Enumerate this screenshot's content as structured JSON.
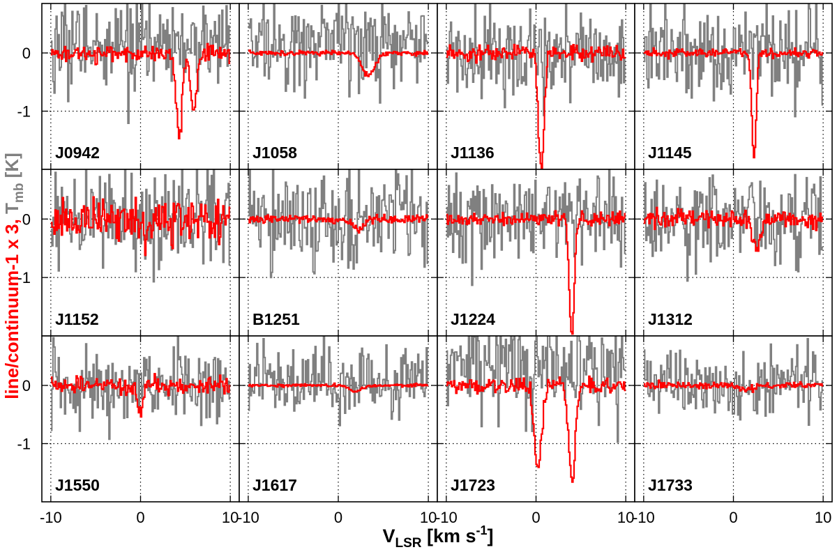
{
  "chart_data": {
    "type": "line",
    "layout": "grid of 12 panels, 3 rows x 4 columns, shared axes",
    "xlabel_main": "V",
    "xlabel_sub": "LSR",
    "xlabel_unit_prefix": " [km s",
    "xlabel_unit_exp": "-1",
    "xlabel_unit_suffix": "]",
    "ylabel_red": "line/continuum-1 x 3, ",
    "ylabel_gray_main": "T",
    "ylabel_gray_sub": "mb",
    "ylabel_gray_suffix": " [K]",
    "xlim": [
      -11,
      11
    ],
    "ylim": [
      -2.0,
      0.85
    ],
    "xticks": [
      -10,
      0,
      10
    ],
    "xtick_labels": [
      "-10",
      "0",
      "10"
    ],
    "yticks": [
      0,
      -1
    ],
    "ytick_labels": [
      "0",
      "-1"
    ],
    "grid": "dotted at x = -10, 0, 10 and y = 0, -1",
    "velocity_range": [
      -10,
      10
    ],
    "colors": {
      "red_series": "#ff0000",
      "gray_series": "#808080",
      "axes": "#000000",
      "grid": "#000000"
    },
    "series": [
      {
        "name": "line/continuum-1 x 3",
        "color": "#ff0000"
      },
      {
        "name": "Tmb [K]",
        "color": "#808080"
      }
    ],
    "panels": [
      {
        "label": "J0942",
        "red_noise": 0.07,
        "gray_noise": 0.38,
        "gray_offset": 0.12,
        "features": [
          {
            "center": 4.3,
            "depth": -1.45,
            "width": 0.33
          },
          {
            "center": 5.9,
            "depth": -1.05,
            "width": 0.33
          }
        ]
      },
      {
        "label": "J1058",
        "red_noise": 0.02,
        "gray_noise": 0.4,
        "gray_offset": 0.2,
        "features": [
          {
            "center": 3.4,
            "depth": -0.38,
            "width": 0.7
          }
        ]
      },
      {
        "label": "J1136",
        "red_noise": 0.07,
        "gray_noise": 0.4,
        "gray_offset": 0.0,
        "features": [
          {
            "center": 0.6,
            "depth": -1.95,
            "width": 0.32
          }
        ]
      },
      {
        "label": "J1145",
        "red_noise": 0.04,
        "gray_noise": 0.4,
        "gray_offset": 0.05,
        "features": [
          {
            "center": 2.3,
            "depth": -1.85,
            "width": 0.24
          }
        ]
      },
      {
        "label": "J1152",
        "red_noise": 0.18,
        "gray_noise": 0.4,
        "gray_offset": 0.0,
        "features": [
          {
            "center": 0.6,
            "depth": -0.3,
            "width": 0.6
          }
        ]
      },
      {
        "label": "B1251",
        "red_noise": 0.04,
        "gray_noise": 0.42,
        "gray_offset": 0.0,
        "features": [
          {
            "center": 2.2,
            "depth": -0.2,
            "width": 0.6
          }
        ]
      },
      {
        "label": "J1224",
        "red_noise": 0.06,
        "gray_noise": 0.42,
        "gray_offset": 0.05,
        "features": [
          {
            "center": 4.0,
            "depth": -1.95,
            "width": 0.28
          }
        ]
      },
      {
        "label": "J1312",
        "red_noise": 0.08,
        "gray_noise": 0.42,
        "gray_offset": 0.0,
        "features": [
          {
            "center": 2.6,
            "depth": -0.5,
            "width": 0.45
          }
        ]
      },
      {
        "label": "J1550",
        "red_noise": 0.07,
        "gray_noise": 0.32,
        "gray_offset": 0.0,
        "features": [
          {
            "center": 0.0,
            "depth": -0.5,
            "width": 0.3
          }
        ]
      },
      {
        "label": "J1617",
        "red_noise": 0.012,
        "gray_noise": 0.28,
        "gray_offset": 0.1,
        "features": [
          {
            "center": 2.0,
            "depth": -0.1,
            "width": 0.7
          }
        ]
      },
      {
        "label": "J1723",
        "red_noise": 0.07,
        "gray_noise": 0.42,
        "gray_offset": 0.25,
        "features": [
          {
            "center": 0.2,
            "depth": -1.4,
            "width": 0.4
          },
          {
            "center": 4.0,
            "depth": -1.65,
            "width": 0.38
          }
        ]
      },
      {
        "label": "J1733",
        "red_noise": 0.03,
        "gray_noise": 0.3,
        "gray_offset": 0.0,
        "features": [
          {
            "center": 1.5,
            "depth": -0.08,
            "width": 0.8
          }
        ]
      }
    ]
  }
}
